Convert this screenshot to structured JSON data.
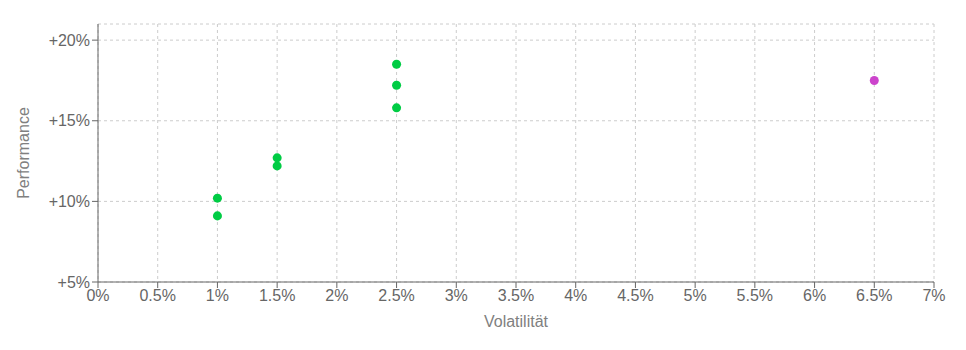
{
  "chart_data": {
    "type": "scatter",
    "xlabel": "Volatilität",
    "ylabel": "Performance",
    "xlim": [
      0.0,
      0.07
    ],
    "ylim": [
      0.05,
      0.21
    ],
    "xticks": [
      {
        "value": 0.0,
        "label": "0%"
      },
      {
        "value": 0.005,
        "label": "0.5%"
      },
      {
        "value": 0.01,
        "label": "1%"
      },
      {
        "value": 0.015,
        "label": "1.5%"
      },
      {
        "value": 0.02,
        "label": "2%"
      },
      {
        "value": 0.025,
        "label": "2.5%"
      },
      {
        "value": 0.03,
        "label": "3%"
      },
      {
        "value": 0.035,
        "label": "3.5%"
      },
      {
        "value": 0.04,
        "label": "4%"
      },
      {
        "value": 0.045,
        "label": "4.5%"
      },
      {
        "value": 0.05,
        "label": "5%"
      },
      {
        "value": 0.055,
        "label": "5.5%"
      },
      {
        "value": 0.06,
        "label": "6%"
      },
      {
        "value": 0.065,
        "label": "6.5%"
      },
      {
        "value": 0.07,
        "label": "7%"
      }
    ],
    "yticks": [
      {
        "value": 0.05,
        "label": "+5%"
      },
      {
        "value": 0.1,
        "label": "+10%"
      },
      {
        "value": 0.15,
        "label": "+15%"
      },
      {
        "value": 0.2,
        "label": "+20%"
      }
    ],
    "grid": true,
    "marker": "circle",
    "series": [
      {
        "color": "#00cc44",
        "x": [
          0.01,
          0.01,
          0.015,
          0.015,
          0.025,
          0.025,
          0.025
        ],
        "values": [
          0.102,
          0.091,
          0.127,
          0.122,
          0.185,
          0.172,
          0.158
        ]
      },
      {
        "color": "#cc44cc",
        "x": [
          0.065
        ],
        "values": [
          0.175
        ]
      }
    ]
  }
}
